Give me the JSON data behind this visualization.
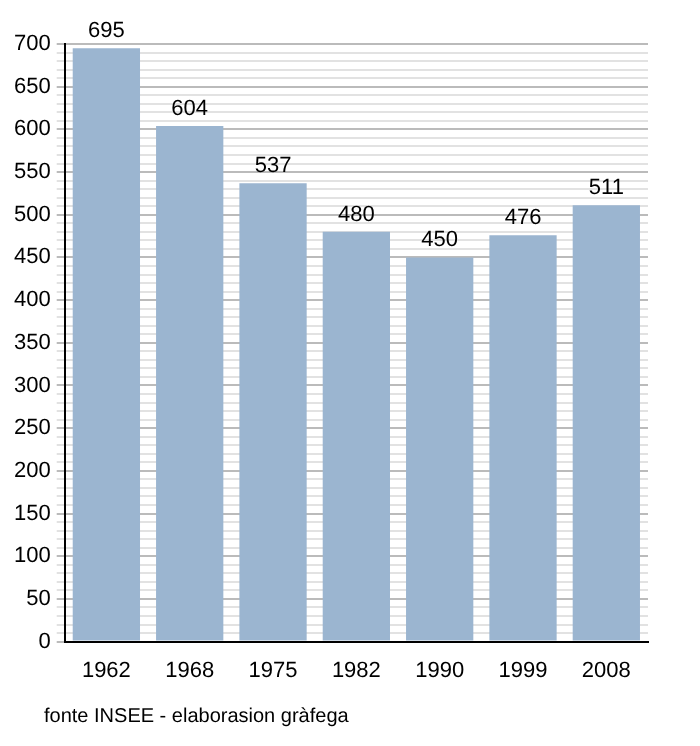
{
  "chart_data": {
    "type": "bar",
    "categories": [
      "1962",
      "1968",
      "1975",
      "1982",
      "1990",
      "1999",
      "2008"
    ],
    "values": [
      695,
      604,
      537,
      480,
      450,
      476,
      511
    ],
    "color": "#9bb5d0",
    "data_labels": true,
    "ylim": [
      0,
      700
    ],
    "yticks": [
      0,
      {
        "value": 10,
        "label": null
      },
      {
        "value": 20,
        "label": null
      },
      {
        "value": 30,
        "label": null
      },
      {
        "value": 40,
        "label": null
      },
      50,
      {
        "value": 60,
        "label": null
      },
      {
        "value": 70,
        "label": null
      },
      {
        "value": 80,
        "label": null
      },
      {
        "value": 90,
        "label": null
      },
      100,
      {
        "value": 110,
        "label": null
      },
      {
        "value": 120,
        "label": null
      },
      {
        "value": 130,
        "label": null
      },
      {
        "value": 140,
        "label": null
      },
      150,
      {
        "value": 160,
        "label": null
      },
      {
        "value": 170,
        "label": null
      },
      {
        "value": 180,
        "label": null
      },
      {
        "value": 190,
        "label": null
      },
      200,
      {
        "value": 210,
        "label": null
      },
      {
        "value": 220,
        "label": null
      },
      {
        "value": 230,
        "label": null
      },
      {
        "value": 240,
        "label": null
      },
      250,
      {
        "value": 260,
        "label": null
      },
      {
        "value": 270,
        "label": null
      },
      {
        "value": 280,
        "label": null
      },
      {
        "value": 290,
        "label": null
      },
      300,
      {
        "value": 310,
        "label": null
      },
      {
        "value": 320,
        "label": null
      },
      {
        "value": 330,
        "label": null
      },
      {
        "value": 340,
        "label": null
      },
      350,
      {
        "value": 360,
        "label": null
      },
      {
        "value": 370,
        "label": null
      },
      {
        "value": 380,
        "label": null
      },
      {
        "value": 390,
        "label": null
      },
      400,
      {
        "value": 410,
        "label": null
      },
      {
        "value": 420,
        "label": null
      },
      {
        "value": 430,
        "label": null
      },
      {
        "value": 440,
        "label": null
      },
      450,
      {
        "value": 460,
        "label": null
      },
      {
        "value": 470,
        "label": null
      },
      {
        "value": 480,
        "label": null
      },
      {
        "value": 490,
        "label": null
      },
      500,
      {
        "value": 510,
        "label": null
      },
      {
        "value": 520,
        "label": null
      },
      {
        "value": 530,
        "label": null
      },
      {
        "value": 540,
        "label": null
      },
      550,
      {
        "value": 560,
        "label": null
      },
      {
        "value": 570,
        "label": null
      },
      {
        "value": 580,
        "label": null
      },
      {
        "value": 590,
        "label": null
      },
      600,
      {
        "value": 610,
        "label": null
      },
      {
        "value": 620,
        "label": null
      },
      {
        "value": 630,
        "label": null
      },
      {
        "value": 640,
        "label": null
      },
      650,
      {
        "value": 660,
        "label": null
      },
      {
        "value": 670,
        "label": null
      },
      {
        "value": 680,
        "label": null
      },
      {
        "value": 690,
        "label": null
      },
      700
    ],
    "grid": "y",
    "legend": false,
    "annotations": [
      "fonte INSEE - elaborasion gràfega"
    ]
  }
}
